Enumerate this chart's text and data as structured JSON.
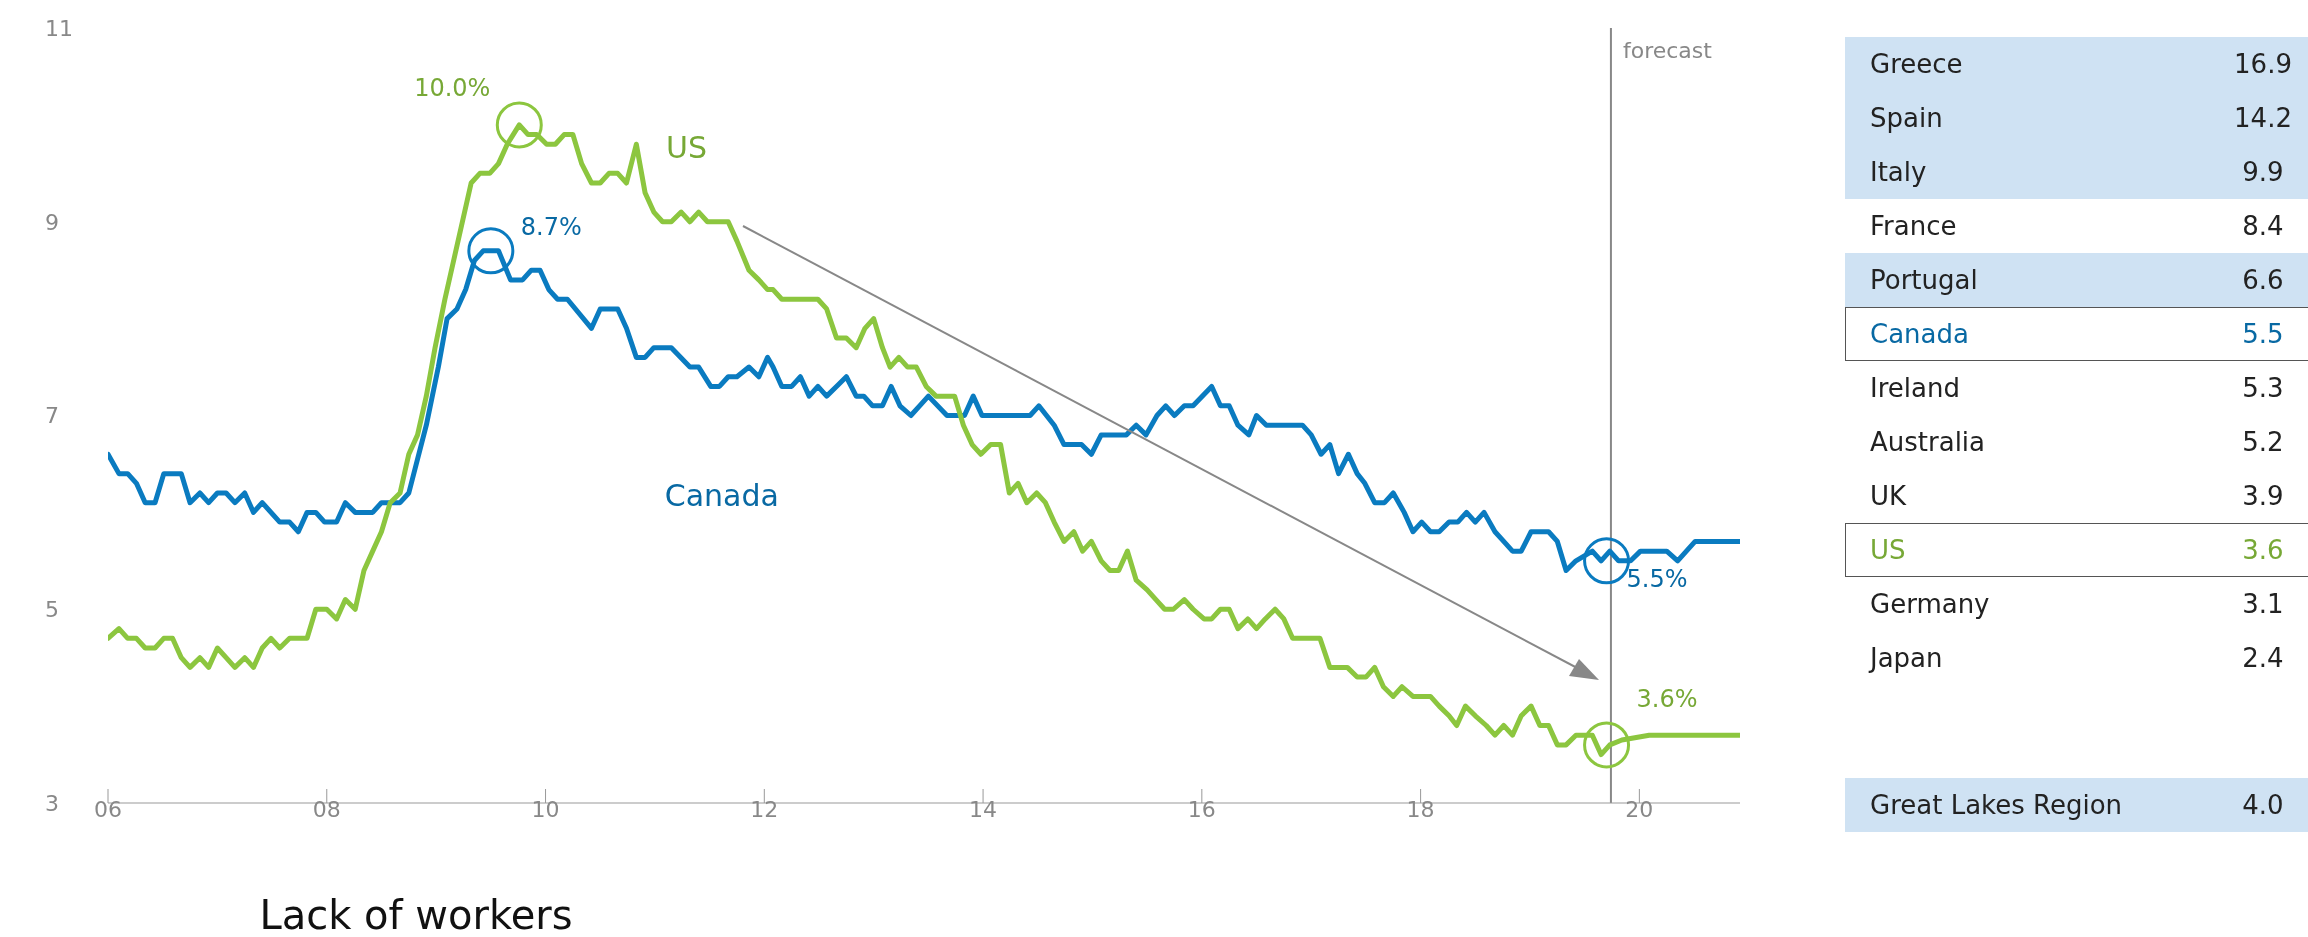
{
  "chart_data": [
    {
      "type": "line",
      "xlabel": "Lack of workers",
      "xlim": [
        2006,
        2020.92
      ],
      "xticks": [
        {
          "value": 2006,
          "label": "06"
        },
        {
          "value": 2008,
          "label": "08"
        },
        {
          "value": 2010,
          "label": "10"
        },
        {
          "value": 2012,
          "label": "12"
        },
        {
          "value": 2014,
          "label": "14"
        },
        {
          "value": 2016,
          "label": "16"
        },
        {
          "value": 2018,
          "label": "18"
        },
        {
          "value": 2020,
          "label": "20"
        }
      ],
      "ylim": [
        3,
        11
      ],
      "yticks": [
        3,
        5,
        7,
        9,
        11
      ],
      "marker": "none",
      "line_style": "solid",
      "series": [
        {
          "name": "Canada",
          "color": "#0a7bc0",
          "x": [
            2006.0,
            2006.1,
            2006.18,
            2006.26,
            2006.34,
            2006.43,
            2006.51,
            2006.67,
            2006.75,
            2006.84,
            2006.92,
            2007.0,
            2007.08,
            2007.16,
            2007.25,
            2007.33,
            2007.41,
            2007.57,
            2007.66,
            2007.74,
            2007.82,
            2007.9,
            2007.98,
            2008.09,
            2008.17,
            2008.26,
            2008.42,
            2008.5,
            2008.67,
            2008.75,
            2008.91,
            2009.02,
            2009.1,
            2009.19,
            2009.27,
            2009.35,
            2009.43,
            2009.57,
            2009.68,
            2009.79,
            2009.87,
            2009.95,
            2010.03,
            2010.11,
            2010.2,
            2010.42,
            2010.5,
            2010.66,
            2010.74,
            2010.83,
            2010.91,
            2010.99,
            2011.15,
            2011.32,
            2011.4,
            2011.51,
            2011.59,
            2011.67,
            2011.75,
            2011.86,
            2011.95,
            2012.03,
            2012.08,
            2012.16,
            2012.25,
            2012.33,
            2012.41,
            2012.49,
            2012.57,
            2012.66,
            2012.75,
            2012.84,
            2012.91,
            2012.99,
            2013.08,
            2013.16,
            2013.24,
            2013.34,
            2013.42,
            2013.5,
            2013.67,
            2013.83,
            2013.91,
            2013.99,
            2014.43,
            2014.51,
            2014.65,
            2014.74,
            2014.9,
            2014.99,
            2015.08,
            2015.31,
            2015.4,
            2015.49,
            2015.59,
            2015.67,
            2015.75,
            2015.84,
            2015.92,
            2016.09,
            2016.17,
            2016.25,
            2016.33,
            2016.43,
            2016.5,
            2016.59,
            2016.92,
            2017.0,
            2017.09,
            2017.17,
            2017.25,
            2017.34,
            2017.42,
            2017.49,
            2017.58,
            2017.67,
            2017.75,
            2017.85,
            2017.93,
            2018.01,
            2018.09,
            2018.17,
            2018.26,
            2018.34,
            2018.42,
            2018.5,
            2018.58,
            2018.68,
            2018.76,
            2018.84,
            2018.92,
            2019.01,
            2019.17,
            2019.25,
            2019.33,
            2019.42,
            2019.57,
            2019.65,
            2019.73,
            2019.81,
            2019.92,
            2020.01,
            2020.25,
            2020.35,
            2020.43,
            2020.51,
            2020.57,
            2020.65,
            2020.75,
            2020.92
          ],
          "values": [
            6.6,
            6.4,
            6.4,
            6.3,
            6.1,
            6.1,
            6.4,
            6.4,
            6.1,
            6.2,
            6.1,
            6.2,
            6.2,
            6.1,
            6.2,
            6.0,
            6.1,
            5.9,
            5.9,
            5.8,
            6.0,
            6.0,
            5.9,
            5.9,
            6.1,
            6.0,
            6.0,
            6.1,
            6.1,
            6.2,
            6.9,
            7.5,
            8.0,
            8.1,
            8.3,
            8.6,
            8.7,
            8.7,
            8.4,
            8.4,
            8.5,
            8.5,
            8.3,
            8.2,
            8.2,
            7.9,
            8.1,
            8.1,
            7.9,
            7.6,
            7.6,
            7.7,
            7.7,
            7.5,
            7.5,
            7.3,
            7.3,
            7.4,
            7.4,
            7.5,
            7.4,
            7.6,
            7.5,
            7.3,
            7.3,
            7.4,
            7.2,
            7.3,
            7.2,
            7.3,
            7.4,
            7.2,
            7.2,
            7.1,
            7.1,
            7.3,
            7.1,
            7.0,
            7.1,
            7.2,
            7.0,
            7.0,
            7.2,
            7.0,
            7.0,
            7.1,
            6.9,
            6.7,
            6.7,
            6.6,
            6.8,
            6.8,
            6.9,
            6.8,
            7.0,
            7.1,
            7.0,
            7.1,
            7.1,
            7.3,
            7.1,
            7.1,
            6.9,
            6.8,
            7.0,
            6.9,
            6.9,
            6.8,
            6.6,
            6.7,
            6.4,
            6.6,
            6.4,
            6.3,
            6.1,
            6.1,
            6.2,
            6.0,
            5.8,
            5.9,
            5.8,
            5.8,
            5.9,
            5.9,
            6.0,
            5.9,
            6.0,
            5.8,
            5.7,
            5.6,
            5.6,
            5.8,
            5.8,
            5.7,
            5.4,
            5.5,
            5.6,
            5.5,
            5.6,
            5.5,
            5.5,
            5.6,
            5.6,
            5.5,
            5.6,
            5.7,
            5.7,
            5.7,
            5.7,
            5.7
          ]
        },
        {
          "name": "US",
          "color": "#8cc63f",
          "x": [
            2006.0,
            2006.1,
            2006.18,
            2006.26,
            2006.34,
            2006.43,
            2006.51,
            2006.59,
            2006.67,
            2006.75,
            2006.84,
            2006.92,
            2007.0,
            2007.08,
            2007.16,
            2007.25,
            2007.33,
            2007.41,
            2007.49,
            2007.57,
            2007.66,
            2007.82,
            2007.9,
            2008.0,
            2008.09,
            2008.17,
            2008.26,
            2008.34,
            2008.42,
            2008.5,
            2008.58,
            2008.67,
            2008.75,
            2008.83,
            2008.91,
            2008.99,
            2009.08,
            2009.16,
            2009.24,
            2009.32,
            2009.4,
            2009.49,
            2009.57,
            2009.65,
            2009.76,
            2009.84,
            2009.92,
            2010.01,
            2010.09,
            2010.17,
            2010.25,
            2010.33,
            2010.42,
            2010.5,
            2010.58,
            2010.66,
            2010.74,
            2010.83,
            2010.91,
            2010.99,
            2011.07,
            2011.15,
            2011.24,
            2011.32,
            2011.4,
            2011.48,
            2011.67,
            2011.75,
            2011.86,
            2011.95,
            2012.03,
            2012.08,
            2012.16,
            2012.49,
            2012.57,
            2012.66,
            2012.75,
            2012.84,
            2012.92,
            2013.0,
            2013.08,
            2013.15,
            2013.23,
            2013.31,
            2013.39,
            2013.48,
            2013.57,
            2013.74,
            2013.82,
            2013.9,
            2013.98,
            2014.07,
            2014.16,
            2014.24,
            2014.32,
            2014.4,
            2014.49,
            2014.57,
            2014.65,
            2014.74,
            2014.83,
            2014.91,
            2014.99,
            2015.08,
            2015.16,
            2015.24,
            2015.32,
            2015.4,
            2015.5,
            2015.58,
            2015.66,
            2015.74,
            2015.84,
            2015.92,
            2016.02,
            2016.09,
            2016.17,
            2016.25,
            2016.33,
            2016.42,
            2016.5,
            2016.58,
            2016.67,
            2016.75,
            2016.83,
            2017.08,
            2017.17,
            2017.33,
            2017.42,
            2017.5,
            2017.58,
            2017.66,
            2017.75,
            2017.83,
            2017.93,
            2018.09,
            2018.17,
            2018.26,
            2018.33,
            2018.41,
            2018.5,
            2018.6,
            2018.68,
            2018.76,
            2018.84,
            2018.92,
            2019.01,
            2019.09,
            2019.17,
            2019.25,
            2019.33,
            2019.42,
            2019.57,
            2019.65,
            2019.73,
            2019.84,
            2020.09,
            2020.92
          ],
          "values": [
            4.7,
            4.8,
            4.7,
            4.7,
            4.6,
            4.6,
            4.7,
            4.7,
            4.5,
            4.4,
            4.5,
            4.4,
            4.6,
            4.5,
            4.4,
            4.5,
            4.4,
            4.6,
            4.7,
            4.6,
            4.7,
            4.7,
            5.0,
            5.0,
            4.9,
            5.1,
            5.0,
            5.4,
            5.6,
            5.8,
            6.1,
            6.2,
            6.6,
            6.8,
            7.2,
            7.7,
            8.2,
            8.6,
            9.0,
            9.4,
            9.5,
            9.5,
            9.6,
            9.8,
            10.0,
            9.9,
            9.9,
            9.8,
            9.8,
            9.9,
            9.9,
            9.6,
            9.4,
            9.4,
            9.5,
            9.5,
            9.4,
            9.8,
            9.3,
            9.1,
            9.0,
            9.0,
            9.1,
            9.0,
            9.1,
            9.0,
            9.0,
            8.8,
            8.5,
            8.4,
            8.3,
            8.3,
            8.2,
            8.2,
            8.1,
            7.8,
            7.8,
            7.7,
            7.9,
            8.0,
            7.7,
            7.5,
            7.6,
            7.5,
            7.5,
            7.3,
            7.2,
            7.2,
            6.9,
            6.7,
            6.6,
            6.7,
            6.7,
            6.2,
            6.3,
            6.1,
            6.2,
            6.1,
            5.9,
            5.7,
            5.8,
            5.6,
            5.7,
            5.5,
            5.4,
            5.4,
            5.6,
            5.3,
            5.2,
            5.1,
            5.0,
            5.0,
            5.1,
            5.0,
            4.9,
            4.9,
            5.0,
            5.0,
            4.8,
            4.9,
            4.8,
            4.9,
            5.0,
            4.9,
            4.7,
            4.7,
            4.4,
            4.4,
            4.3,
            4.3,
            4.4,
            4.2,
            4.1,
            4.2,
            4.1,
            4.1,
            4.0,
            3.9,
            3.8,
            4.0,
            3.9,
            3.8,
            3.7,
            3.8,
            3.7,
            3.9,
            4.0,
            3.8,
            3.8,
            3.6,
            3.6,
            3.7,
            3.7,
            3.5,
            3.6,
            3.65,
            3.7,
            3.7
          ]
        }
      ],
      "ref_lines": [
        {
          "axis": "x",
          "value": 2019.74,
          "label": "forecast",
          "color": "#888888"
        }
      ],
      "annotations": [
        {
          "text": "10.0%",
          "x": 2009.76,
          "y": 10.0
        },
        {
          "text": "8.7%",
          "x": 2009.5,
          "y": 8.7
        },
        {
          "text": "5.5%",
          "x": 2019.7,
          "y": 5.5
        },
        {
          "text": "3.6%",
          "x": 2019.7,
          "y": 3.6
        }
      ]
    },
    {
      "type": "other",
      "categories": [
        "Greece",
        "Spain",
        "Italy",
        "France",
        "Portugal",
        "Canada",
        "Ireland",
        "Australia",
        "UK",
        "US",
        "Germany",
        "Japan",
        null,
        "Great Lakes Region"
      ],
      "value_labels": [
        "16.9",
        "14.2",
        "9.9",
        "8.4",
        "6.6",
        "5.5",
        "5.3",
        "5.2",
        "3.9",
        "3.6",
        "3.1",
        "2.4",
        null,
        "4.0"
      ],
      "colors": [
        "#cfe2f3",
        "#cfe2f3",
        "#cfe2f3",
        "#ffffff",
        "#cfe2f3",
        "#ffffff",
        "#ffffff",
        "#ffffff",
        "#ffffff",
        "#ffffff",
        "#ffffff",
        "#ffffff",
        null,
        "#cfe2f3"
      ]
    }
  ]
}
